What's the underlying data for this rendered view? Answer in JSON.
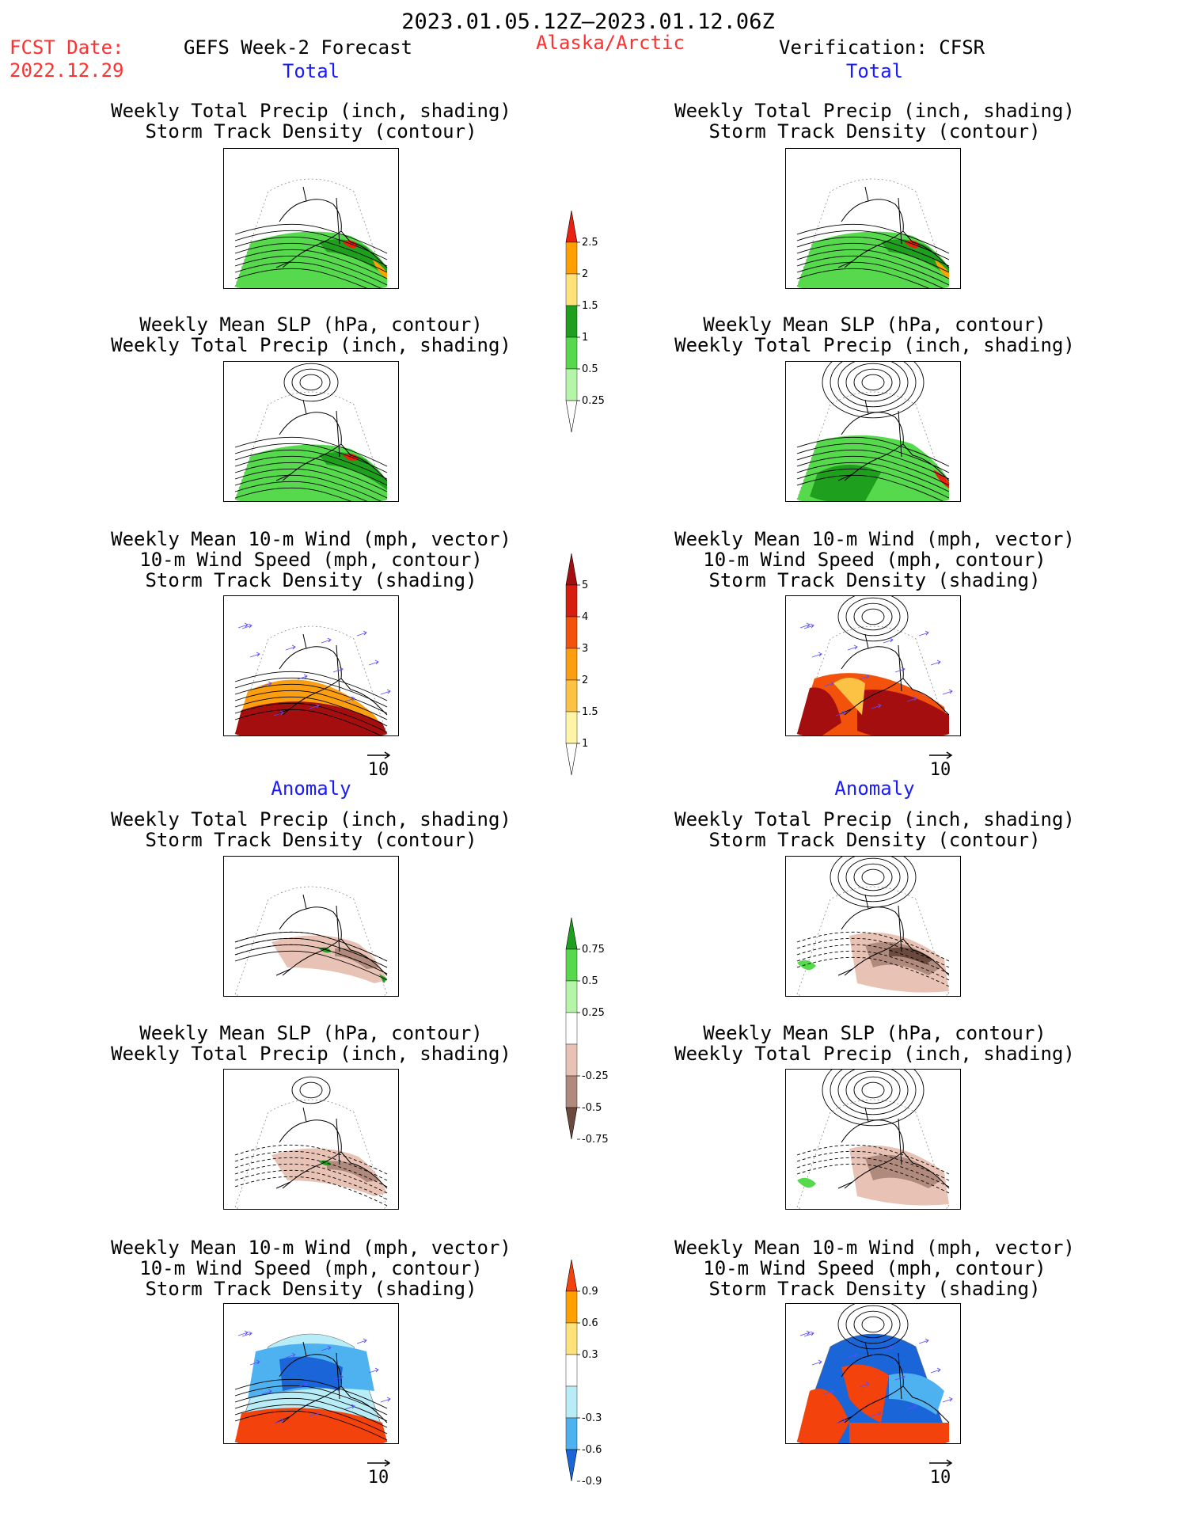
{
  "header": {
    "date_range": "2023.01.05.12Z–2023.01.12.06Z",
    "fcst_label": "FCST Date:",
    "fcst_date": "2022.12.29",
    "model": "GEFS Week-2 Forecast",
    "region": "Alaska/Arctic",
    "verification": "Verification: CFSR"
  },
  "sections": {
    "total": "Total",
    "anomaly": "Anomaly"
  },
  "titles": {
    "precip_storm": [
      "Weekly Total Precip (inch, shading)",
      "Storm Track Density (contour)"
    ],
    "slp_precip": [
      "Weekly Mean SLP (hPa, contour)",
      "Weekly Total Precip (inch, shading)"
    ],
    "wind_storm": [
      "Weekly Mean 10-m Wind (mph, vector)",
      "10-m Wind Speed (mph, contour)",
      "Storm Track Density (shading)"
    ]
  },
  "vector_ref": "10",
  "colorbars": [
    {
      "labels": [
        "2.5",
        "2",
        "1.5",
        "1",
        "0.5",
        "0.25"
      ],
      "colors": [
        "#e8220e",
        "#ffa000",
        "#ffe27a",
        "#1e9f1e",
        "#56d94c",
        "#b4f5a8"
      ]
    },
    {
      "labels": [
        "5",
        "4",
        "3",
        "2",
        "1.5",
        "1"
      ],
      "colors": [
        "#a50e0e",
        "#d71e0e",
        "#f3520c",
        "#fb9f10",
        "#fcc243",
        "#fff5a5"
      ]
    },
    {
      "labels": [
        "0.75",
        "0.5",
        "0.25",
        "-0.25",
        "-0.5",
        "-0.75"
      ],
      "colors": [
        "#1e9f1e",
        "#56d94c",
        "#b4f5a8",
        "#ffffff",
        "#e8c3b5",
        "#b08a7c",
        "#6c4a3e"
      ]
    },
    {
      "labels": [
        "0.9",
        "0.6",
        "0.3",
        "-0.3",
        "-0.6",
        "-0.9"
      ],
      "colors": [
        "#f3420c",
        "#ffa000",
        "#ffe27a",
        "#ffffff",
        "#b8ecf7",
        "#4fb2f0",
        "#1a66d8"
      ]
    }
  ]
}
